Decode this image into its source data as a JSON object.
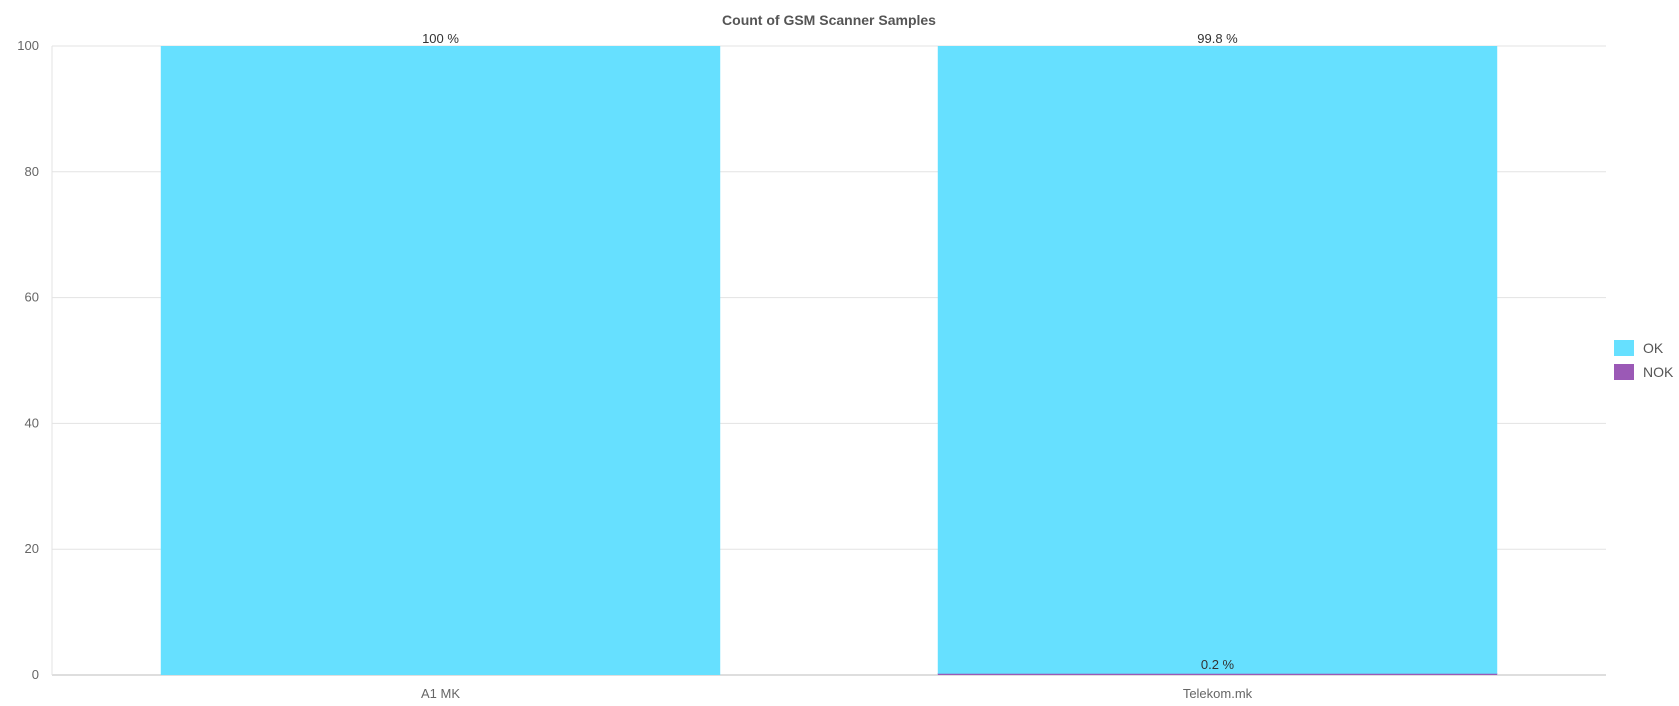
{
  "chart_data": {
    "type": "bar",
    "stacked": true,
    "title": "Count of GSM Scanner Samples",
    "xlabel": "",
    "ylabel": "",
    "categories": [
      "A1 MK",
      "Telekom.mk"
    ],
    "series": [
      {
        "name": "OK",
        "values": [
          100,
          99.8
        ],
        "labels": [
          "100 %",
          "99.8 %"
        ],
        "color": "#66e0ff"
      },
      {
        "name": "NOK",
        "values": [
          0,
          0.2
        ],
        "labels": [
          "",
          "0.2 %"
        ],
        "color": "#9b59b6"
      }
    ],
    "ylim": [
      0,
      100
    ],
    "yticks": [
      "0",
      "20",
      "40",
      "60",
      "80",
      "100"
    ],
    "grid": true,
    "legend_position": "right"
  }
}
